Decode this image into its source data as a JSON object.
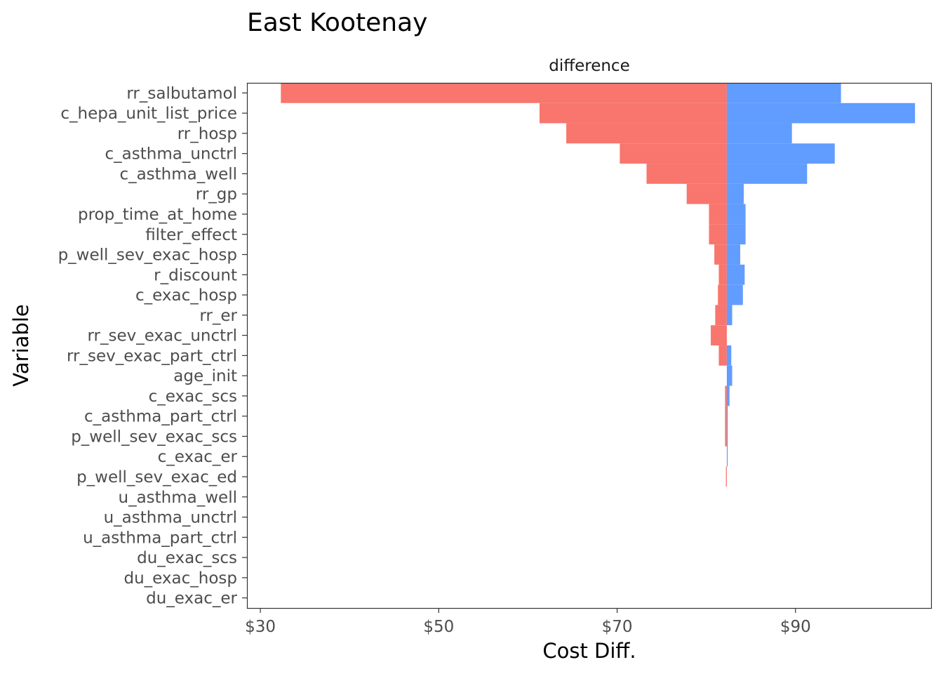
{
  "chart_data": {
    "type": "bar",
    "orientation": "horizontal",
    "title": "East Kootenay",
    "facet_label": "difference",
    "xlabel": "Cost Diff.",
    "ylabel": "Variable",
    "baseline": 82.3,
    "xlim": [
      28.5,
      105.2
    ],
    "x_ticks": [
      30,
      50,
      70,
      90
    ],
    "x_tick_labels": [
      "$30",
      "$50",
      "$70",
      "$90"
    ],
    "categories": [
      "rr_salbutamol",
      "c_hepa_unit_list_price",
      "rr_hosp",
      "c_asthma_unctrl",
      "c_asthma_well",
      "rr_gp",
      "prop_time_at_home",
      "filter_effect",
      "p_well_sev_exac_hosp",
      "r_discount",
      "c_exac_hosp",
      "rr_er",
      "rr_sev_exac_unctrl",
      "rr_sev_exac_part_ctrl",
      "age_init",
      "c_exac_scs",
      "c_asthma_part_ctrl",
      "p_well_sev_exac_scs",
      "c_exac_er",
      "p_well_sev_exac_ed",
      "u_asthma_well",
      "u_asthma_unctrl",
      "u_asthma_part_ctrl",
      "du_exac_scs",
      "du_exac_hosp",
      "du_exac_er"
    ],
    "series": [
      {
        "color": "#F8766D",
        "values": [
          32.3,
          61.3,
          64.3,
          70.3,
          73.3,
          77.8,
          80.3,
          80.3,
          80.9,
          81.4,
          81.3,
          81.0,
          80.5,
          81.4,
          82.3,
          82.1,
          82.1,
          82.1,
          82.3,
          82.2,
          82.3,
          82.3,
          82.3,
          82.3,
          82.3,
          82.3
        ]
      },
      {
        "color": "#619CFF",
        "values": [
          95.1,
          103.4,
          89.6,
          94.4,
          91.3,
          84.2,
          84.4,
          84.4,
          83.8,
          84.3,
          84.1,
          82.9,
          82.3,
          82.8,
          82.9,
          82.6,
          82.4,
          82.4,
          82.4,
          82.3,
          82.3,
          82.3,
          82.3,
          82.3,
          82.3,
          82.3
        ]
      }
    ]
  }
}
